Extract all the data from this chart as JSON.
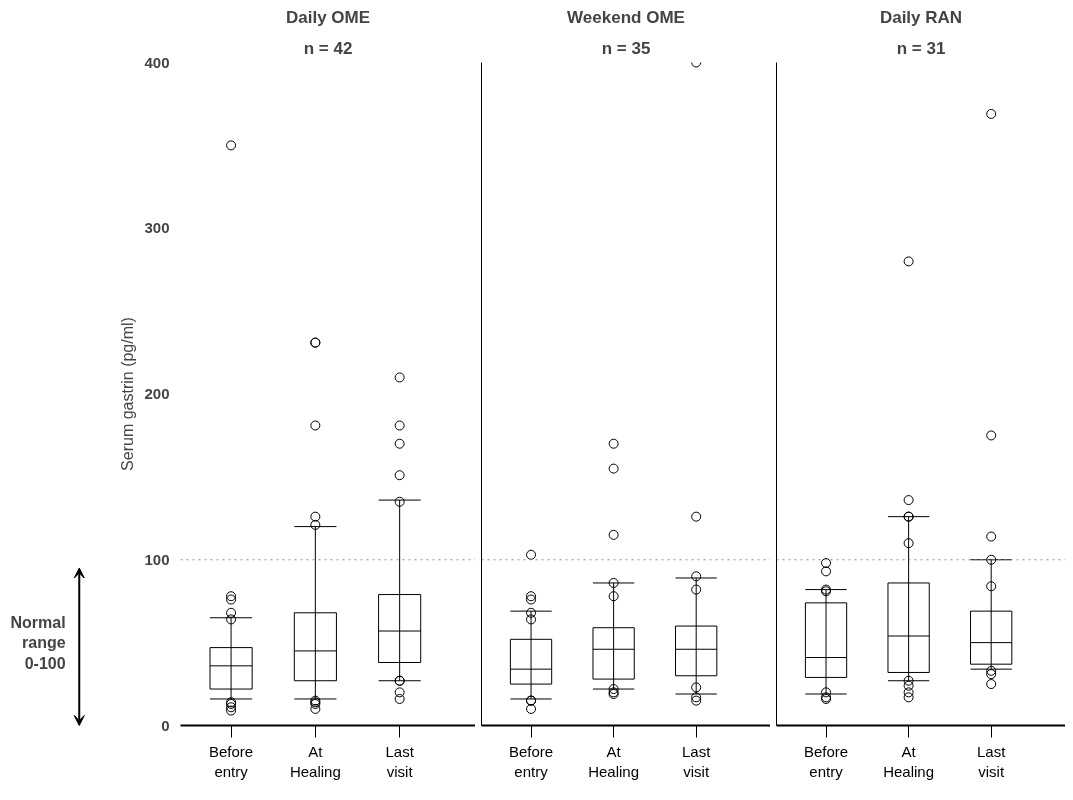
{
  "chart_data": [
    {
      "type": "box",
      "title": "Daily OME",
      "subtitle": "n = 42",
      "ylabel": "Serum gastrin (pg/ml)",
      "categories": [
        "Before entry",
        "At Healing",
        "Last visit"
      ],
      "ylim": [
        0,
        400
      ],
      "yticks": [
        0,
        100,
        200,
        300,
        400
      ],
      "ref_lines": [
        {
          "axis": "y",
          "value": 100,
          "line_style": "dotted"
        }
      ],
      "annotations": [
        "Normal range 0-100"
      ],
      "boxes": [
        {
          "low": 16,
          "q1": 22,
          "median": 36,
          "q3": 47,
          "high": 65,
          "outliers": [
            350,
            78,
            76,
            68,
            64,
            14,
            13,
            11,
            9
          ]
        },
        {
          "low": 16,
          "q1": 27,
          "median": 45,
          "q3": 68,
          "high": 120,
          "outliers": [
            231,
            231,
            181,
            126,
            121,
            15,
            14,
            13,
            10
          ]
        },
        {
          "low": 27,
          "q1": 38,
          "median": 57,
          "q3": 79,
          "high": 136,
          "outliers": [
            210,
            181,
            170,
            151,
            135,
            27,
            27,
            20,
            16
          ]
        }
      ]
    },
    {
      "type": "box",
      "title": "Weekend OME",
      "subtitle": "n = 35",
      "categories": [
        "Before entry",
        "At Healing",
        "Last visit"
      ],
      "ylim": [
        0,
        400
      ],
      "yticks": [
        0,
        100,
        200,
        300,
        400
      ],
      "tick_labels": "x",
      "ref_lines": [
        {
          "axis": "y",
          "value": 100,
          "line_style": "dotted"
        }
      ],
      "boxes": [
        {
          "low": 16,
          "q1": 25,
          "median": 34,
          "q3": 52,
          "high": 69,
          "outliers": [
            103,
            78,
            76,
            68,
            64,
            15,
            15,
            10
          ]
        },
        {
          "low": 22,
          "q1": 28,
          "median": 46,
          "q3": 59,
          "high": 86,
          "outliers": [
            170,
            155,
            115,
            86,
            78,
            22,
            20,
            19
          ]
        },
        {
          "low": 19,
          "q1": 30,
          "median": 46,
          "q3": 60,
          "high": 89,
          "outliers": [
            400,
            126,
            90,
            82,
            23,
            17,
            15
          ]
        }
      ]
    },
    {
      "type": "box",
      "title": "Daily RAN",
      "subtitle": "n = 31",
      "categories": [
        "Before entry",
        "At Healing",
        "Last visit"
      ],
      "ylim": [
        0,
        400
      ],
      "yticks": [
        0,
        100,
        200,
        300,
        400
      ],
      "tick_labels": "x",
      "ref_lines": [
        {
          "axis": "y",
          "value": 100,
          "line_style": "dotted"
        }
      ],
      "boxes": [
        {
          "low": 19,
          "q1": 29,
          "median": 41,
          "q3": 74,
          "high": 82,
          "outliers": [
            98,
            93,
            82,
            81,
            20,
            17,
            16
          ]
        },
        {
          "low": 27,
          "q1": 32,
          "median": 54,
          "q3": 86,
          "high": 126,
          "outliers": [
            280,
            136,
            126,
            126,
            110,
            27,
            24,
            20,
            17
          ]
        },
        {
          "low": 34,
          "q1": 37,
          "median": 50,
          "q3": 69,
          "high": 100,
          "outliers": [
            369,
            175,
            114,
            100,
            84,
            33,
            31,
            25
          ]
        }
      ]
    }
  ]
}
